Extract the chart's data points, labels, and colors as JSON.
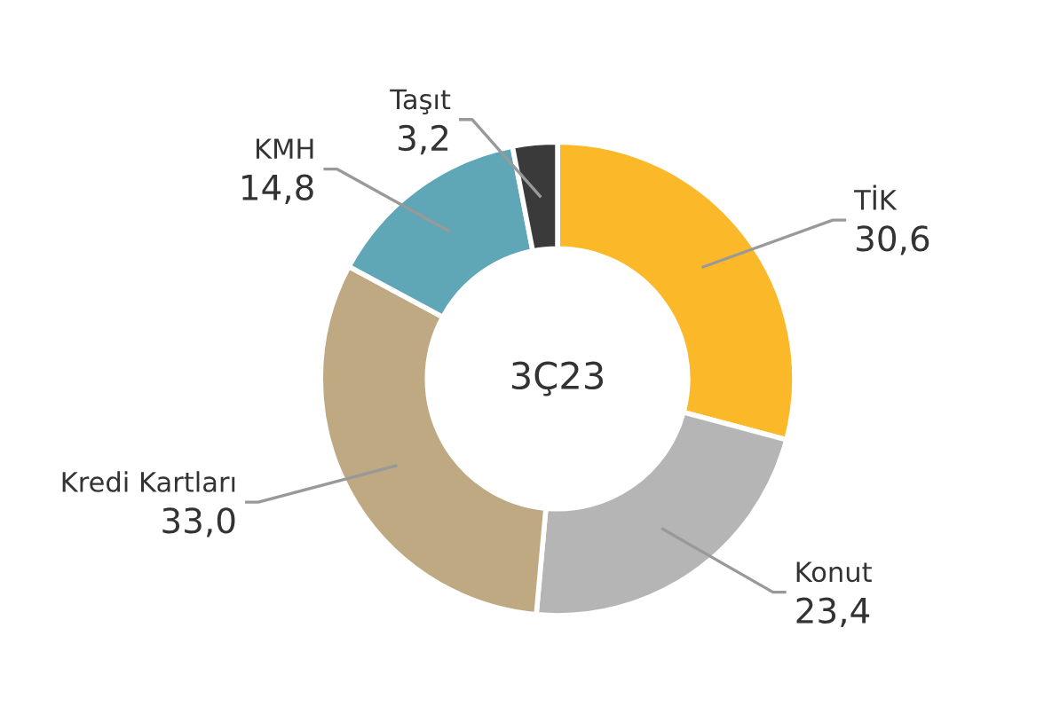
{
  "chart_data": {
    "type": "donut",
    "categories": [
      "TİK",
      "Konut",
      "Kredi Kartları",
      "KMH",
      "Taşıt"
    ],
    "values": [
      30.6,
      23.4,
      33.0,
      14.8,
      3.2
    ],
    "colors": [
      "#fbb829",
      "#b5b5b5",
      "#bfa982",
      "#5fa6b7",
      "#3a3a3a"
    ],
    "value_labels": [
      "30,6",
      "23,4",
      "33,0",
      "14,8",
      "3,2"
    ],
    "annotations": [
      "3Ç23"
    ]
  }
}
